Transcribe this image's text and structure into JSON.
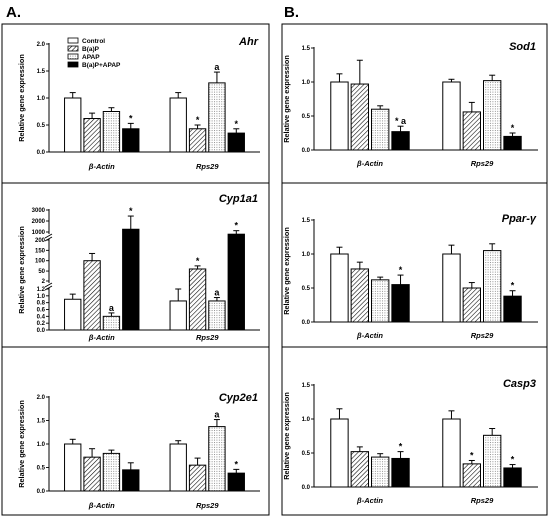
{
  "panel_labels": {
    "a": "A.",
    "b": "B."
  },
  "legend": [
    {
      "label": "Control",
      "pattern": "white"
    },
    {
      "label": "B(a)P",
      "pattern": "hatch"
    },
    {
      "label": "APAP",
      "pattern": "dots"
    },
    {
      "label": "B(a)P+APAP",
      "pattern": "black"
    }
  ],
  "colors": {
    "ink": "#000000",
    "white": "#ffffff"
  },
  "chart_data": [
    {
      "id": "ahr",
      "type": "bar",
      "title": "Ahr",
      "ylabel": "Relative gene expression",
      "categories": [
        "β-Actin",
        "Rps29"
      ],
      "ylim": [
        0,
        2.0
      ],
      "ticks": [
        "0.0",
        "0.5",
        "1.0",
        "1.5",
        "2.0"
      ],
      "series": [
        {
          "name": "Control",
          "values": [
            1.0,
            1.0
          ],
          "errors": [
            0.1,
            0.1
          ],
          "marks": [
            "",
            ""
          ]
        },
        {
          "name": "B(a)P",
          "values": [
            0.62,
            0.43
          ],
          "errors": [
            0.1,
            0.07
          ],
          "marks": [
            "",
            "*"
          ]
        },
        {
          "name": "APAP",
          "values": [
            0.75,
            1.28
          ],
          "errors": [
            0.07,
            0.2
          ],
          "marks": [
            "",
            "a"
          ]
        },
        {
          "name": "B(a)P+APAP",
          "values": [
            0.43,
            0.35
          ],
          "errors": [
            0.1,
            0.08
          ],
          "marks": [
            "*",
            "*"
          ]
        }
      ]
    },
    {
      "id": "cyp1a1",
      "type": "bar",
      "title": "Cyp1a1",
      "ylabel": "Relative gene expression",
      "categories": [
        "β-Actin",
        "Rps29"
      ],
      "axis_breaks": true,
      "ticks": [
        "0.0",
        "0.2",
        "0.4",
        "0.6",
        "0.8",
        "1.0",
        "1.2",
        "2",
        "50",
        "100",
        "150",
        "200",
        "1000",
        "2000",
        "3000"
      ],
      "series": [
        {
          "name": "Control",
          "values": [
            0.9,
            0.85
          ],
          "errors": [
            0.15,
            0.35
          ],
          "marks": [
            "",
            ""
          ]
        },
        {
          "name": "B(a)P",
          "values": [
            100,
            60
          ],
          "errors": [
            35,
            15
          ],
          "marks": [
            "",
            "*"
          ]
        },
        {
          "name": "APAP",
          "values": [
            0.4,
            0.85
          ],
          "errors": [
            0.1,
            0.1
          ],
          "marks": [
            "a",
            "a"
          ]
        },
        {
          "name": "B(a)P+APAP",
          "values": [
            1250,
            800
          ],
          "errors": [
            1200,
            320
          ],
          "marks": [
            "*",
            "*"
          ]
        }
      ]
    },
    {
      "id": "cyp2e1",
      "type": "bar",
      "title": "Cyp2e1",
      "ylabel": "Relative gene expression",
      "categories": [
        "β-Actin",
        "Rps29"
      ],
      "ylim": [
        0,
        2.0
      ],
      "ticks": [
        "0.0",
        "0.5",
        "1.0",
        "1.5",
        "2.0"
      ],
      "series": [
        {
          "name": "Control",
          "values": [
            1.0,
            1.0
          ],
          "errors": [
            0.1,
            0.07
          ],
          "marks": [
            "",
            ""
          ]
        },
        {
          "name": "B(a)P",
          "values": [
            0.72,
            0.55
          ],
          "errors": [
            0.18,
            0.15
          ],
          "marks": [
            "",
            ""
          ]
        },
        {
          "name": "APAP",
          "values": [
            0.8,
            1.37
          ],
          "errors": [
            0.07,
            0.15
          ],
          "marks": [
            "",
            "a"
          ]
        },
        {
          "name": "B(a)P+APAP",
          "values": [
            0.45,
            0.38
          ],
          "errors": [
            0.15,
            0.08
          ],
          "marks": [
            "",
            "*"
          ]
        }
      ]
    },
    {
      "id": "sod1",
      "type": "bar",
      "title": "Sod1",
      "ylabel": "Relative gene expression",
      "categories": [
        "β-Actin",
        "Rps29"
      ],
      "ylim": [
        0,
        1.5
      ],
      "ticks": [
        "0.0",
        "0.5",
        "1.0",
        "1.5"
      ],
      "series": [
        {
          "name": "Control",
          "values": [
            1.0,
            1.0
          ],
          "errors": [
            0.12,
            0.04
          ],
          "marks": [
            "",
            ""
          ]
        },
        {
          "name": "B(a)P",
          "values": [
            0.97,
            0.56
          ],
          "errors": [
            0.35,
            0.14
          ],
          "marks": [
            "",
            ""
          ]
        },
        {
          "name": "APAP",
          "values": [
            0.6,
            1.02
          ],
          "errors": [
            0.05,
            0.08
          ],
          "marks": [
            "",
            ""
          ]
        },
        {
          "name": "B(a)P+APAP",
          "values": [
            0.27,
            0.2
          ],
          "errors": [
            0.08,
            0.05
          ],
          "marks": [
            "* a",
            "*"
          ]
        }
      ]
    },
    {
      "id": "ppar",
      "type": "bar",
      "title": "Ppar-γ",
      "ylabel": "Relative gene expression",
      "categories": [
        "β-Actin",
        "Rps29"
      ],
      "ylim": [
        0,
        1.5
      ],
      "ticks": [
        "0.0",
        "0.5",
        "1.0",
        "1.5"
      ],
      "series": [
        {
          "name": "Control",
          "values": [
            1.0,
            1.0
          ],
          "errors": [
            0.1,
            0.13
          ],
          "marks": [
            "",
            ""
          ]
        },
        {
          "name": "B(a)P",
          "values": [
            0.78,
            0.5
          ],
          "errors": [
            0.1,
            0.08
          ],
          "marks": [
            "",
            ""
          ]
        },
        {
          "name": "APAP",
          "values": [
            0.62,
            1.05
          ],
          "errors": [
            0.04,
            0.1
          ],
          "marks": [
            "",
            ""
          ]
        },
        {
          "name": "B(a)P+APAP",
          "values": [
            0.55,
            0.38
          ],
          "errors": [
            0.14,
            0.08
          ],
          "marks": [
            "*",
            "*"
          ]
        }
      ]
    },
    {
      "id": "casp3",
      "type": "bar",
      "title": "Casp3",
      "ylabel": "Relative gene expression",
      "categories": [
        "β-Actin",
        "Rps29"
      ],
      "ylim": [
        0,
        1.5
      ],
      "ticks": [
        "0.0",
        "0.5",
        "1.0",
        "1.5"
      ],
      "series": [
        {
          "name": "Control",
          "values": [
            1.0,
            1.0
          ],
          "errors": [
            0.15,
            0.12
          ],
          "marks": [
            "",
            ""
          ]
        },
        {
          "name": "B(a)P",
          "values": [
            0.52,
            0.34
          ],
          "errors": [
            0.07,
            0.05
          ],
          "marks": [
            "",
            "*"
          ]
        },
        {
          "name": "APAP",
          "values": [
            0.44,
            0.76
          ],
          "errors": [
            0.05,
            0.1
          ],
          "marks": [
            "",
            ""
          ]
        },
        {
          "name": "B(a)P+APAP",
          "values": [
            0.42,
            0.28
          ],
          "errors": [
            0.1,
            0.05
          ],
          "marks": [
            "*",
            "*"
          ]
        }
      ]
    }
  ]
}
